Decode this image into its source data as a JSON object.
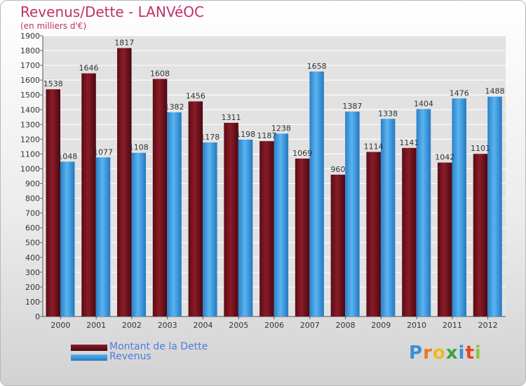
{
  "title": "Revenus/Dette - LANVéOC",
  "subtitle": "(en milliers d'€)",
  "colors": {
    "dette": "#7a1420",
    "revenus": "#3f9ee4",
    "title": "#c0306a",
    "legend_text": "#4a7de0"
  },
  "chart_data": {
    "type": "bar",
    "title": "Revenus/Dette - LANVéOC",
    "subtitle": "(en milliers d'€)",
    "categories": [
      "2000",
      "2001",
      "2002",
      "2003",
      "2004",
      "2005",
      "2006",
      "2007",
      "2008",
      "2009",
      "2010",
      "2011",
      "2012"
    ],
    "series": [
      {
        "name": "Montant de la Dette",
        "values": [
          1538,
          1646,
          1817,
          1608,
          1456,
          1311,
          1187,
          1069,
          960,
          1114,
          1141,
          1042,
          1101
        ]
      },
      {
        "name": "Revenus",
        "values": [
          1048,
          1077,
          1108,
          1382,
          1178,
          1198,
          1238,
          1658,
          1387,
          1338,
          1404,
          1476,
          1488
        ]
      }
    ],
    "data_labels": [
      [
        "1538",
        "1646",
        "1817",
        "1608",
        "1456",
        "1311",
        "1187",
        "1069",
        "960",
        "1114",
        "1141",
        "1042",
        "1101"
      ],
      [
        "1048",
        "1077",
        "1108",
        "1382",
        "1178",
        "1198",
        "1238",
        "1658",
        "1387",
        "1338",
        "1404",
        "1476",
        "1488"
      ]
    ],
    "ylim": [
      0,
      1900
    ],
    "yticks": [
      0,
      100,
      200,
      300,
      400,
      500,
      600,
      700,
      800,
      900,
      1000,
      1100,
      1200,
      1300,
      1400,
      1500,
      1600,
      1700,
      1800,
      1900
    ],
    "grid": true,
    "legend_position": "bottom-left"
  },
  "legend": {
    "dette_label": "Montant de la Dette",
    "revenus_label": "Revenus"
  },
  "logo": {
    "text": "Proxiti",
    "letter_colors": [
      "#3a8fd8",
      "#e87a1e",
      "#f0b81c",
      "#3aa63a",
      "#3a8fd8",
      "#e8441e",
      "#8dc63f"
    ]
  }
}
